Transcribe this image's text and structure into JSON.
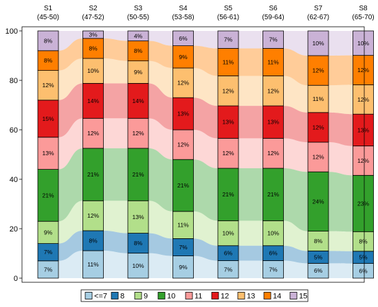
{
  "chart_data": {
    "type": "alluvial",
    "stages": [
      {
        "name": "S1",
        "range": "(45-50)"
      },
      {
        "name": "S2",
        "range": "(47-52)"
      },
      {
        "name": "S3",
        "range": "(50-55)"
      },
      {
        "name": "S4",
        "range": "(53-58)"
      },
      {
        "name": "S5",
        "range": "(56-61)"
      },
      {
        "name": "S6",
        "range": "(59-64)"
      },
      {
        "name": "S7",
        "range": "(62-67)"
      },
      {
        "name": "S8",
        "range": "(65-70)"
      }
    ],
    "categories": [
      "<=7",
      "8",
      "9",
      "10",
      "11",
      "12",
      "13",
      "14",
      "15"
    ],
    "colors": [
      "#a6cee3",
      "#1f78b4",
      "#b2df8a",
      "#33a02c",
      "#fb9a99",
      "#e31a1c",
      "#fdbf6f",
      "#ff7f00",
      "#cab2d6"
    ],
    "values": [
      [
        7,
        7,
        9,
        21,
        13,
        15,
        12,
        8,
        8
      ],
      [
        11,
        8,
        12,
        21,
        12,
        14,
        10,
        8,
        3
      ],
      [
        10,
        8,
        13,
        21,
        12,
        14,
        9,
        8,
        4
      ],
      [
        9,
        7,
        11,
        21,
        12,
        13,
        12,
        9,
        6
      ],
      [
        7,
        6,
        10,
        21,
        12,
        13,
        12,
        11,
        7
      ],
      [
        7,
        6,
        10,
        21,
        12,
        13,
        12,
        11,
        7
      ],
      [
        6,
        5,
        8,
        24,
        12,
        12,
        11,
        12,
        10
      ],
      [
        6,
        5,
        8,
        23,
        12,
        13,
        12,
        12,
        10
      ]
    ],
    "ylim": [
      0,
      100
    ],
    "yticks": [
      "0",
      "20",
      "40",
      "60",
      "80",
      "100"
    ],
    "legend_position": "bottom"
  }
}
